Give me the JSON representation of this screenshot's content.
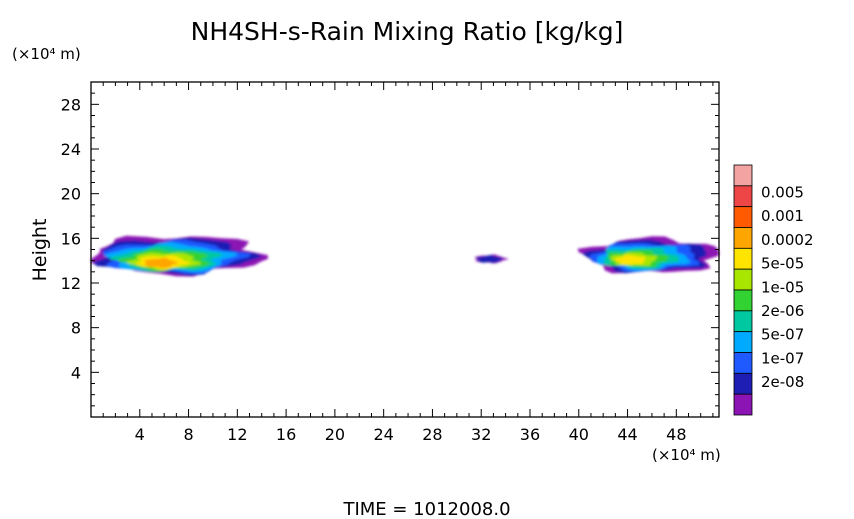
{
  "chart_data": {
    "type": "heatmap",
    "title": "NH4SH-s-Rain Mixing Ratio [kg/kg]",
    "ylabel": "Height",
    "y_unit": "(×10⁴ m)",
    "x_unit": "(×10⁴ m)",
    "xlim": [
      0,
      51.5
    ],
    "ylim": [
      0,
      30
    ],
    "x_ticks": [
      4,
      8,
      12,
      16,
      20,
      24,
      28,
      32,
      36,
      40,
      44,
      48
    ],
    "y_ticks": [
      4,
      8,
      12,
      16,
      20,
      24,
      28
    ],
    "x_tick_labels": [
      "4",
      "8",
      "12",
      "16",
      "20",
      "24",
      "28",
      "32",
      "36",
      "40",
      "44",
      "48"
    ],
    "y_tick_labels": [
      "4",
      "8",
      "12",
      "16",
      "20",
      "24",
      "28"
    ],
    "colorbar": {
      "labels": [
        "0.005",
        "0.001",
        "0.0002",
        "5e-05",
        "1e-05",
        "2e-06",
        "5e-07",
        "1e-07",
        "2e-08"
      ],
      "colors": [
        "#f4a3a3",
        "#ee4646",
        "#ff5a00",
        "#ffa500",
        "#ffe400",
        "#a8e600",
        "#32d232",
        "#00c8a0",
        "#00aaff",
        "#1e5aff",
        "#1e1eb4",
        "#8c14b4"
      ]
    },
    "regions": [
      {
        "x0": 0,
        "x1": 14.0,
        "y0": 12.8,
        "y1": 16.2,
        "peak": 0.0002,
        "peak_x": 5.5,
        "peak_y": 13.7
      },
      {
        "x0": 31.5,
        "x1": 34.0,
        "y0": 13.8,
        "y1": 14.5,
        "peak": 1e-07,
        "peak_x": 32.5,
        "peak_y": 14.1
      },
      {
        "x0": 40.5,
        "x1": 51.5,
        "y0": 12.9,
        "y1": 16.0,
        "peak": 5e-05,
        "peak_x": 44.0,
        "peak_y": 14.0
      }
    ],
    "time_label": "TIME =  1012008.0"
  }
}
